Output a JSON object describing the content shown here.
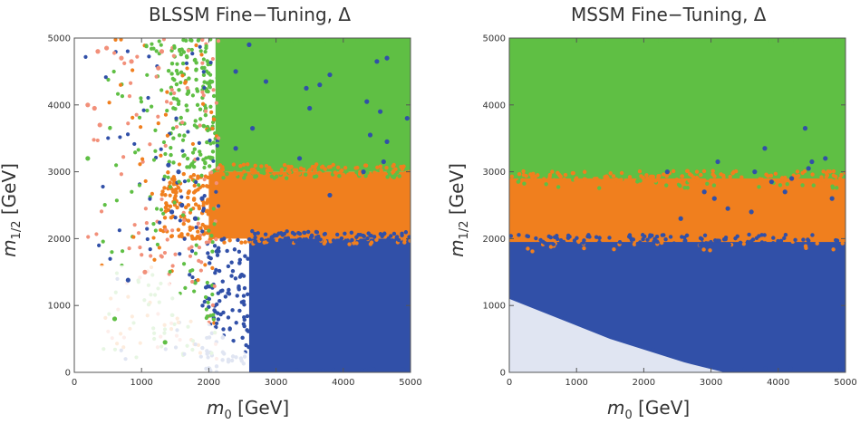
{
  "colors": {
    "green": "#5fbf44",
    "orange": "#f07f1e",
    "blue": "#3150a8",
    "salmon": "#f2907a"
  },
  "chart_data": [
    {
      "type": "scatter",
      "title": "BLSSM Fine−Tuning, Δ",
      "xlabel_var": "m",
      "xlabel_sub": "0",
      "xlabel_unit": " [GeV]",
      "ylabel_var": "m",
      "ylabel_sub": "1/2",
      "ylabel_unit": " [GeV]",
      "xlim": [
        0,
        5000
      ],
      "ylim": [
        0,
        5000
      ],
      "xticks": [
        "0",
        "1000",
        "2000",
        "3000",
        "4000",
        "5000"
      ],
      "yticks": [
        "0",
        "1000",
        "2000",
        "3000",
        "4000",
        "5000"
      ],
      "regions": [
        {
          "color": "green",
          "x_min": 2100,
          "x_max": 5000,
          "y_min": 3000,
          "y_max": 5000
        },
        {
          "color": "orange",
          "x_min": 2000,
          "x_max": 5000,
          "y_min": 2000,
          "y_max": 3000
        },
        {
          "color": "blue",
          "x_min": 2600,
          "x_max": 5000,
          "y_min": 0,
          "y_max": 2000
        }
      ],
      "scatter_points": [
        {
          "x": 2600,
          "y": 4900,
          "color": "blue"
        },
        {
          "x": 2400,
          "y": 4500,
          "color": "blue"
        },
        {
          "x": 2850,
          "y": 4350,
          "color": "blue"
        },
        {
          "x": 3450,
          "y": 4250,
          "color": "blue"
        },
        {
          "x": 3650,
          "y": 4300,
          "color": "blue"
        },
        {
          "x": 4500,
          "y": 4650,
          "color": "blue"
        },
        {
          "x": 4650,
          "y": 4700,
          "color": "blue"
        },
        {
          "x": 3800,
          "y": 4450,
          "color": "blue"
        },
        {
          "x": 4350,
          "y": 4050,
          "color": "blue"
        },
        {
          "x": 3500,
          "y": 3950,
          "color": "blue"
        },
        {
          "x": 2650,
          "y": 3650,
          "color": "blue"
        },
        {
          "x": 4650,
          "y": 3450,
          "color": "blue"
        },
        {
          "x": 4550,
          "y": 3900,
          "color": "blue"
        },
        {
          "x": 3350,
          "y": 3200,
          "color": "blue"
        },
        {
          "x": 4400,
          "y": 3550,
          "color": "blue"
        },
        {
          "x": 2400,
          "y": 3350,
          "color": "blue"
        },
        {
          "x": 3800,
          "y": 2650,
          "color": "blue"
        },
        {
          "x": 4300,
          "y": 3000,
          "color": "blue"
        },
        {
          "x": 4950,
          "y": 3800,
          "color": "blue"
        },
        {
          "x": 1400,
          "y": 3100,
          "color": "blue"
        },
        {
          "x": 1550,
          "y": 3000,
          "color": "blue"
        },
        {
          "x": 800,
          "y": 1380,
          "color": "blue"
        },
        {
          "x": 1600,
          "y": 2500,
          "color": "blue"
        },
        {
          "x": 1800,
          "y": 2300,
          "color": "blue"
        },
        {
          "x": 1900,
          "y": 2600,
          "color": "blue"
        },
        {
          "x": 1450,
          "y": 2400,
          "color": "blue"
        },
        {
          "x": 600,
          "y": 800,
          "color": "green"
        },
        {
          "x": 1050,
          "y": 1500,
          "color": "salmon"
        },
        {
          "x": 300,
          "y": 3950,
          "color": "salmon"
        },
        {
          "x": 200,
          "y": 4000,
          "color": "salmon"
        },
        {
          "x": 380,
          "y": 3700,
          "color": "salmon"
        },
        {
          "x": 350,
          "y": 4800,
          "color": "salmon"
        },
        {
          "x": 480,
          "y": 4850,
          "color": "salmon"
        },
        {
          "x": 700,
          "y": 4700,
          "color": "salmon"
        },
        {
          "x": 850,
          "y": 4650,
          "color": "salmon"
        },
        {
          "x": 1300,
          "y": 4800,
          "color": "salmon"
        },
        {
          "x": 1250,
          "y": 4550,
          "color": "salmon"
        },
        {
          "x": 200,
          "y": 3200,
          "color": "green"
        },
        {
          "x": 1350,
          "y": 450,
          "color": "green"
        },
        {
          "x": 4600,
          "y": 3150,
          "color": "blue"
        }
      ]
    },
    {
      "type": "scatter",
      "title": "MSSM Fine−Tuning, Δ",
      "xlabel_var": "m",
      "xlabel_sub": "0",
      "xlabel_unit": " [GeV]",
      "ylabel_var": "m",
      "ylabel_sub": "1/2",
      "ylabel_unit": " [GeV]",
      "xlim": [
        0,
        5000
      ],
      "ylim": [
        0,
        5000
      ],
      "xticks": [
        "0",
        "1000",
        "2000",
        "3000",
        "4000",
        "5000"
      ],
      "yticks": [
        "0",
        "1000",
        "2000",
        "3000",
        "4000",
        "5000"
      ],
      "regions": [
        {
          "color": "green",
          "x_min": 0,
          "x_max": 5000,
          "y_min": 2850,
          "y_max": 5000
        },
        {
          "color": "orange",
          "x_min": 0,
          "x_max": 5000,
          "y_min": 1900,
          "y_max": 2900
        },
        {
          "color": "blue",
          "x_min": 0,
          "x_max": 5000,
          "y_min": 0,
          "y_max": 1950
        }
      ],
      "scatter_points": [
        {
          "x": 4400,
          "y": 3650,
          "color": "blue"
        },
        {
          "x": 3800,
          "y": 3350,
          "color": "blue"
        },
        {
          "x": 4500,
          "y": 3150,
          "color": "blue"
        },
        {
          "x": 4450,
          "y": 3050,
          "color": "blue"
        },
        {
          "x": 3650,
          "y": 3000,
          "color": "blue"
        },
        {
          "x": 3900,
          "y": 2850,
          "color": "blue"
        },
        {
          "x": 4200,
          "y": 2900,
          "color": "blue"
        },
        {
          "x": 4100,
          "y": 2700,
          "color": "blue"
        },
        {
          "x": 2900,
          "y": 2700,
          "color": "blue"
        },
        {
          "x": 3050,
          "y": 2600,
          "color": "blue"
        },
        {
          "x": 3250,
          "y": 2450,
          "color": "blue"
        },
        {
          "x": 3600,
          "y": 2400,
          "color": "blue"
        },
        {
          "x": 2550,
          "y": 2300,
          "color": "blue"
        },
        {
          "x": 4700,
          "y": 3200,
          "color": "blue"
        },
        {
          "x": 4800,
          "y": 2600,
          "color": "blue"
        },
        {
          "x": 2350,
          "y": 3000,
          "color": "blue"
        },
        {
          "x": 3100,
          "y": 3150,
          "color": "blue"
        }
      ]
    }
  ]
}
